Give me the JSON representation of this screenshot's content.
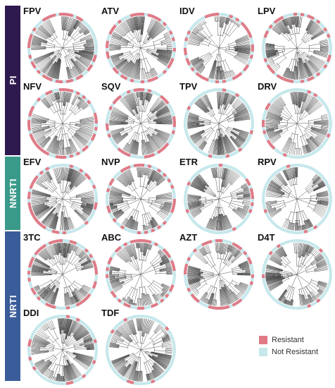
{
  "groups": [
    {
      "label": "PI",
      "color": "#2e1a4f"
    },
    {
      "label": "NNRTI",
      "color": "#3a9a8a"
    },
    {
      "label": "NRTI",
      "color": "#3b5c9a"
    }
  ],
  "colors": {
    "resistant": "#e07a86",
    "not_resistant": "#c6e8ec",
    "branch": "#444444"
  },
  "panels": [
    {
      "label": "FPV",
      "resistant_fraction": 0.45
    },
    {
      "label": "ATV",
      "resistant_fraction": 0.5
    },
    {
      "label": "IDV",
      "resistant_fraction": 0.55
    },
    {
      "label": "LPV",
      "resistant_fraction": 0.5
    },
    {
      "label": "NFV",
      "resistant_fraction": 0.6
    },
    {
      "label": "SQV",
      "resistant_fraction": 0.45
    },
    {
      "label": "TPV",
      "resistant_fraction": 0.15
    },
    {
      "label": "DRV",
      "resistant_fraction": 0.15
    },
    {
      "label": "EFV",
      "resistant_fraction": 0.4
    },
    {
      "label": "NVP",
      "resistant_fraction": 0.45
    },
    {
      "label": "ETR",
      "resistant_fraction": 0.15
    },
    {
      "label": "RPV",
      "resistant_fraction": 0.1
    },
    {
      "label": "3TC",
      "resistant_fraction": 0.55
    },
    {
      "label": "ABC",
      "resistant_fraction": 0.6
    },
    {
      "label": "AZT",
      "resistant_fraction": 0.45
    },
    {
      "label": "D4T",
      "resistant_fraction": 0.15
    },
    {
      "label": "DDI",
      "resistant_fraction": 0.1
    },
    {
      "label": "TDF",
      "resistant_fraction": 0.1
    }
  ],
  "legend": [
    {
      "label": "Resistant",
      "color": "#e07a86"
    },
    {
      "label": "Not Resistant",
      "color": "#c6e8ec"
    }
  ]
}
